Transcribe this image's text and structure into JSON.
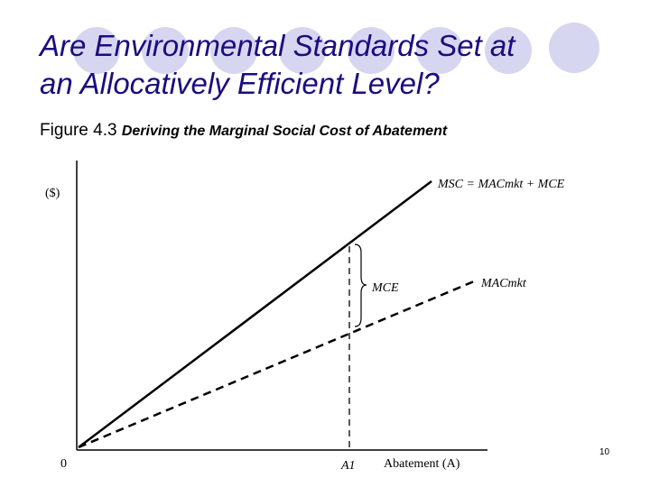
{
  "slide": {
    "title_line1": "Are Environmental Standards Set at",
    "title_line2": "an Allocatively Efficient Level?",
    "figure_number": "Figure 4.3",
    "figure_caption": "Deriving the Marginal Social Cost of Abatement",
    "page_number": "10",
    "title_color": "#1a0d80",
    "decor_circle_color": "#d6d6f0"
  },
  "diagram": {
    "y_axis_label": "($)",
    "origin_label": "0",
    "x_axis_label": "Abatement (A)",
    "a1_label": "A1",
    "msc_label": "MSC = MACmkt + MCE",
    "mac_label": "MACmkt",
    "mce_label": "MCE"
  }
}
